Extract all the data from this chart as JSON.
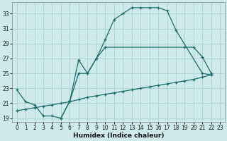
{
  "xlabel": "Humidex (Indice chaleur)",
  "bg_color": "#ceeaea",
  "grid_color": "#aed4d4",
  "line_color": "#1a6b6b",
  "xlim": [
    -0.5,
    23.5
  ],
  "ylim": [
    18.5,
    34.5
  ],
  "xticks": [
    0,
    1,
    2,
    3,
    4,
    5,
    6,
    7,
    8,
    9,
    10,
    11,
    12,
    13,
    14,
    15,
    16,
    17,
    18,
    19,
    20,
    21,
    22,
    23
  ],
  "ytick_vals": [
    19,
    21,
    23,
    25,
    27,
    29,
    31,
    33
  ],
  "series": [
    {
      "x": [
        0,
        1,
        2,
        3,
        4,
        5,
        6,
        7,
        8,
        9,
        10,
        19,
        20,
        21,
        22
      ],
      "y": [
        22.8,
        21.2,
        20.8,
        19.3,
        19.3,
        19.0,
        21.3,
        26.8,
        25.0,
        27.0,
        28.5,
        28.5,
        28.5,
        27.2,
        25.0
      ]
    },
    {
      "x": [
        5,
        6,
        7,
        8,
        9,
        10,
        11,
        12,
        13,
        14,
        15,
        16,
        17,
        18,
        21,
        22
      ],
      "y": [
        19.0,
        21.3,
        25.0,
        25.0,
        27.0,
        29.5,
        32.2,
        33.0,
        33.8,
        33.8,
        33.8,
        33.8,
        33.4,
        30.8,
        25.0,
        24.8
      ]
    },
    {
      "x": [
        0,
        1,
        2,
        3,
        4,
        5,
        6,
        7,
        8,
        9,
        10,
        11,
        12,
        13,
        14,
        15,
        16,
        17,
        18,
        19,
        20,
        21,
        22
      ],
      "y": [
        20.0,
        20.2,
        20.4,
        20.6,
        20.8,
        21.0,
        21.2,
        21.5,
        21.8,
        22.0,
        22.2,
        22.4,
        22.6,
        22.8,
        23.0,
        23.2,
        23.4,
        23.6,
        23.8,
        24.0,
        24.2,
        24.5,
        24.8
      ]
    }
  ]
}
